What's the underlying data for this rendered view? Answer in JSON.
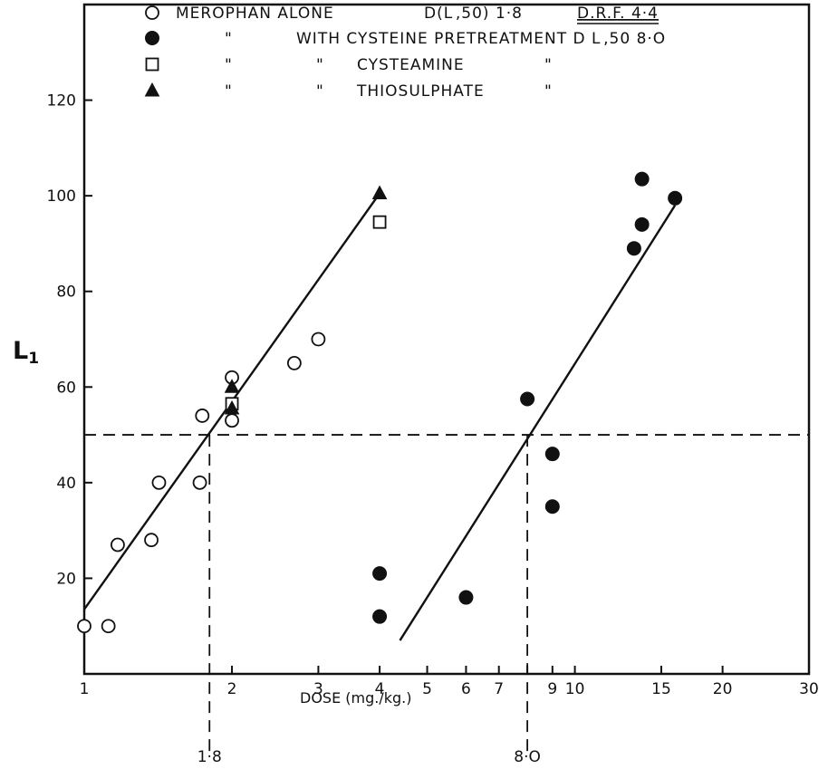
{
  "chart_data": {
    "type": "scatter",
    "x_scale": "log",
    "xlim": [
      1,
      30
    ],
    "ylim": [
      0,
      140
    ],
    "xlabel": "DOSE (mg./kg.)",
    "ylabel": "L",
    "ylabel_subscript": "1",
    "x_ticks": [
      {
        "value": 1,
        "label": "1"
      },
      {
        "value": 2,
        "label": "2"
      },
      {
        "value": 3,
        "label": "3"
      },
      {
        "value": 4,
        "label": "4"
      },
      {
        "value": 5,
        "label": "5"
      },
      {
        "value": 6,
        "label": "6"
      },
      {
        "value": 7,
        "label": "7"
      },
      {
        "value": 9,
        "label": "9"
      },
      {
        "value": 10,
        "label": "10"
      },
      {
        "value": 15,
        "label": "15"
      },
      {
        "value": 20,
        "label": "20"
      },
      {
        "value": 30,
        "label": "30"
      }
    ],
    "x_minor_ticks": [
      8
    ],
    "y_ticks": [
      {
        "value": 20,
        "label": "20"
      },
      {
        "value": 40,
        "label": "40"
      },
      {
        "value": 60,
        "label": "60"
      },
      {
        "value": 80,
        "label": "80"
      },
      {
        "value": 100,
        "label": "100"
      },
      {
        "value": 120,
        "label": "120"
      }
    ],
    "legend": [
      {
        "marker": "open-circle",
        "texts": [
          {
            "text": "MEROPHAN ALONE",
            "col": 0
          },
          {
            "text": "D(L ,50) 1·8",
            "col": 1
          },
          {
            "text": "D.R.F. 4·4",
            "col": 2,
            "underline": true
          }
        ]
      },
      {
        "marker": "filled-circle",
        "texts": [
          {
            "text": "\"",
            "col": 3
          },
          {
            "text": "WITH CYSTEINE PRETREATMENT D L ,50  8·O",
            "col": 4
          }
        ]
      },
      {
        "marker": "open-square",
        "texts": [
          {
            "text": "\"",
            "col": 3
          },
          {
            "text": "\"",
            "col": 5
          },
          {
            "text": "CYSTEAMINE",
            "col": 6
          },
          {
            "text": "\"",
            "col": 7
          }
        ]
      },
      {
        "marker": "filled-triangle",
        "texts": [
          {
            "text": "\"",
            "col": 3
          },
          {
            "text": "\"",
            "col": 5
          },
          {
            "text": "THIOSULPHATE",
            "col": 6
          },
          {
            "text": "\"",
            "col": 7
          }
        ]
      }
    ],
    "series": [
      {
        "marker": "open-circle",
        "points": [
          [
            1.0,
            10
          ],
          [
            1.12,
            10
          ],
          [
            1.17,
            27
          ],
          [
            1.37,
            28
          ],
          [
            1.42,
            40
          ],
          [
            1.72,
            40
          ],
          [
            1.74,
            54
          ],
          [
            2.0,
            62
          ],
          [
            2.0,
            53
          ],
          [
            2.68,
            65
          ],
          [
            3.0,
            70
          ]
        ]
      },
      {
        "marker": "filled-circle",
        "points": [
          [
            4.0,
            21
          ],
          [
            4.0,
            12
          ],
          [
            6.0,
            16
          ],
          [
            8.0,
            57.5
          ],
          [
            9.0,
            46
          ],
          [
            9.0,
            35
          ],
          [
            13.2,
            89
          ],
          [
            13.7,
            103.5
          ],
          [
            13.7,
            94
          ],
          [
            16.0,
            99.5
          ]
        ]
      },
      {
        "marker": "open-square",
        "points": [
          [
            2.0,
            56.5
          ],
          [
            4.0,
            94.5
          ]
        ]
      },
      {
        "marker": "filled-triangle",
        "points": [
          [
            2.0,
            60
          ],
          [
            2.0,
            55.5
          ],
          [
            4.0,
            100.5
          ]
        ]
      }
    ],
    "regression_lines": [
      {
        "x": [
          1.0,
          4.0
        ],
        "y": [
          13.5,
          100.5
        ]
      },
      {
        "x": [
          4.4,
          16.0
        ],
        "y": [
          7,
          98
        ]
      }
    ],
    "reference_lines": {
      "horizontal_y": 50,
      "vertical_x": [
        1.8,
        8.0
      ]
    },
    "annotations": [
      {
        "text": "1·8",
        "x": 1.8
      },
      {
        "text": "8·O",
        "x": 8.0
      }
    ]
  }
}
